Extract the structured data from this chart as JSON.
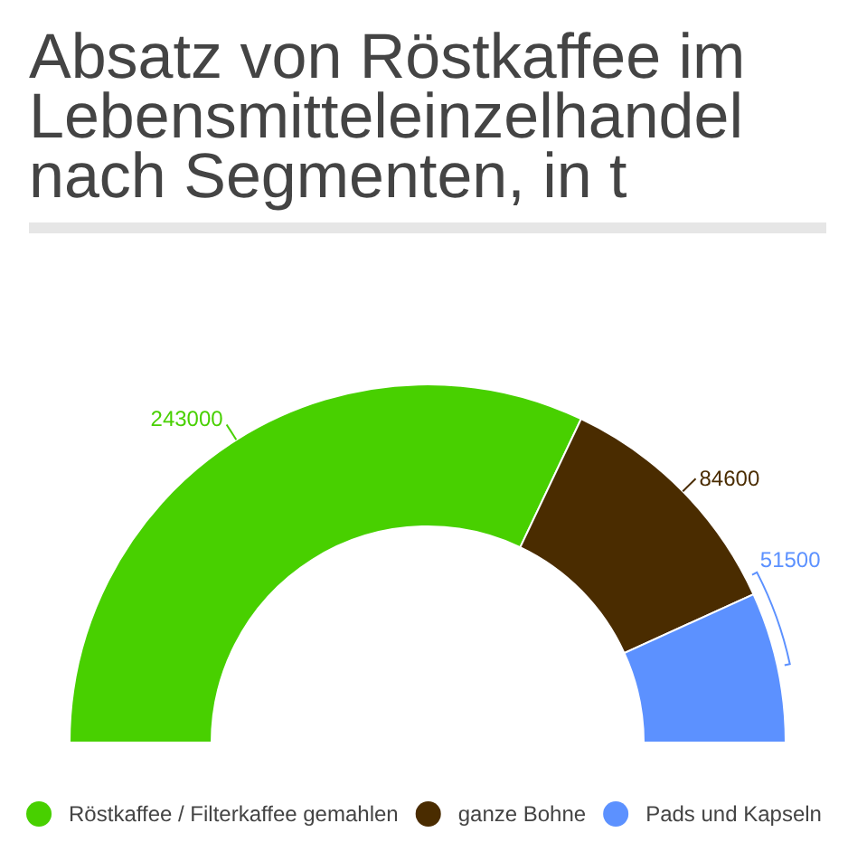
{
  "chart_data": {
    "type": "donut",
    "title": "Absatz von Röstkaffee im Lebensmitteleinzelhandel nach Segmenten, in t",
    "categories": [
      "Röstkaffee / Filterkaffee gemahlen",
      "ganze Bohne",
      "Pads und Kapseln"
    ],
    "values": [
      243000,
      84600,
      51500
    ],
    "colors": [
      "#48d000",
      "#4a2c00",
      "#5c91ff"
    ],
    "data_labels": true,
    "legend": "bottom"
  }
}
